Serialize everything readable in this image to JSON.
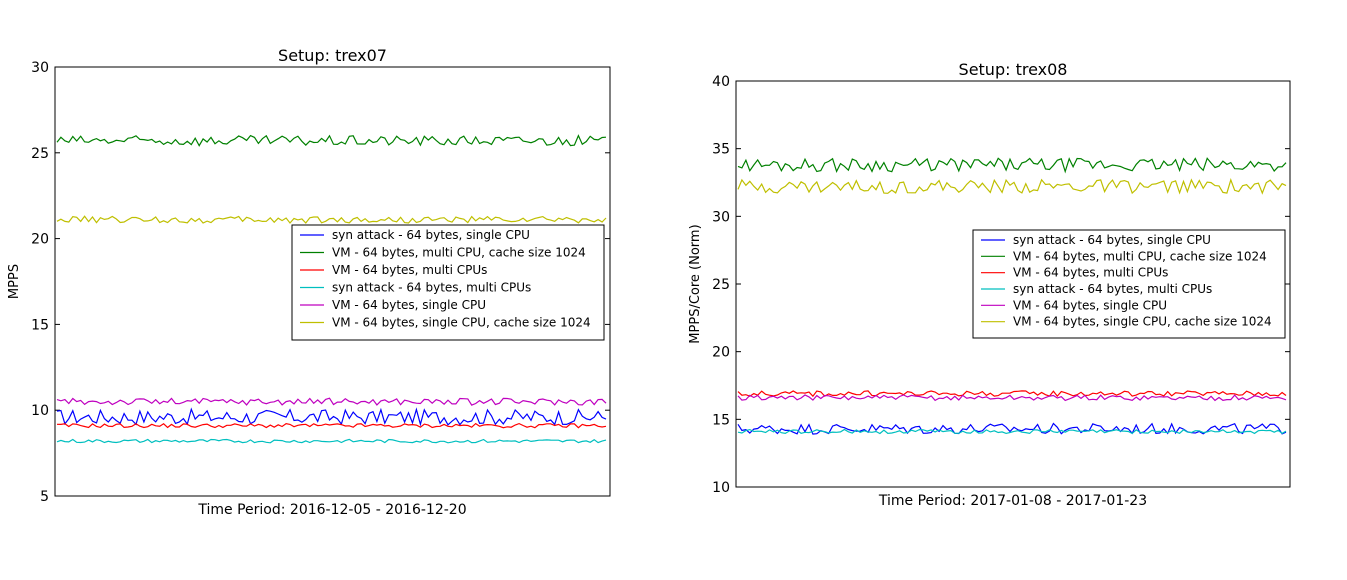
{
  "chart_data": [
    {
      "type": "line",
      "title": "Setup: trex07",
      "xlabel": "Time Period: 2016-12-05 - 2016-12-20",
      "ylabel": "MPPS",
      "ylim": [
        5,
        30
      ],
      "yticks": [
        5,
        10,
        15,
        20,
        25,
        30
      ],
      "legend_position": "center-right",
      "grid": false,
      "series": [
        {
          "name": "syn attack - 64 bytes, single CPU",
          "color": "#0000ff",
          "base": 9.6,
          "amp": 0.45,
          "values": []
        },
        {
          "name": "VM - 64 bytes, multi CPU, cache size 1024",
          "color": "#008000",
          "base": 25.7,
          "amp": 0.3,
          "values": []
        },
        {
          "name": "VM - 64 bytes, multi CPUs",
          "color": "#ff0000",
          "base": 9.1,
          "amp": 0.12,
          "values": []
        },
        {
          "name": "syn attack - 64 bytes, multi CPUs",
          "color": "#00bfbf",
          "base": 8.2,
          "amp": 0.1,
          "values": []
        },
        {
          "name": "VM - 64 bytes, single CPU",
          "color": "#bf00bf",
          "base": 10.5,
          "amp": 0.2,
          "values": []
        },
        {
          "name": "VM - 64 bytes, single CPU, cache size 1024",
          "color": "#bfbf00",
          "base": 21.1,
          "amp": 0.2,
          "values": []
        }
      ]
    },
    {
      "type": "line",
      "title": "Setup: trex08",
      "xlabel": "Time Period: 2017-01-08 - 2017-01-23",
      "ylabel": "MPPS/Core (Norm)",
      "ylim": [
        10,
        40
      ],
      "yticks": [
        10,
        15,
        20,
        25,
        30,
        35,
        40
      ],
      "legend_position": "center-right",
      "grid": false,
      "series": [
        {
          "name": "syn attack - 64 bytes, single CPU",
          "color": "#0000ff",
          "base": 14.3,
          "amp": 0.4,
          "values": []
        },
        {
          "name": "VM - 64 bytes, multi CPU, cache size 1024",
          "color": "#008000",
          "base": 33.8,
          "amp": 0.5,
          "values": []
        },
        {
          "name": "VM - 64 bytes, multi CPUs",
          "color": "#ff0000",
          "base": 16.9,
          "amp": 0.2,
          "values": []
        },
        {
          "name": "syn attack - 64 bytes, multi CPUs",
          "color": "#00bfbf",
          "base": 14.1,
          "amp": 0.15,
          "values": []
        },
        {
          "name": "VM - 64 bytes, single CPU",
          "color": "#bf00bf",
          "base": 16.6,
          "amp": 0.2,
          "values": []
        },
        {
          "name": "VM - 64 bytes, single CPU, cache size 1024",
          "color": "#bfbf00",
          "base": 32.2,
          "amp": 0.5,
          "values": []
        }
      ]
    }
  ]
}
